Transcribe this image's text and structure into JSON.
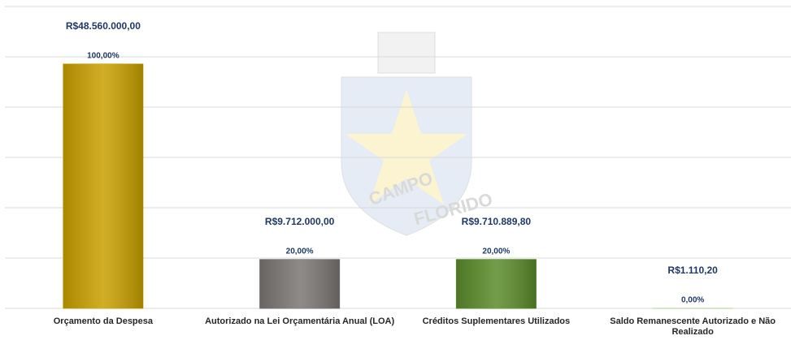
{
  "chart_data": {
    "type": "bar",
    "categories": [
      "Orçamento da Despesa",
      "Autorizado na Lei Orçamentária Anual (LOA)",
      "Créditos Suplementares Utilizados",
      "Saldo Remanescente Autorizado e Não Realizado"
    ],
    "values": [
      48560000,
      9712000,
      9710889.8,
      1110.2
    ],
    "value_labels": [
      "R$48.560.000,00",
      "R$9.712.000,00",
      "R$9.710.889,80",
      "R$1.110,20"
    ],
    "percentages": [
      100,
      20,
      20,
      0
    ],
    "percentage_labels": [
      "100,00%",
      "20,00%",
      "20,00%",
      "0,00%"
    ],
    "colors": [
      "#c9a000",
      "#7a7674",
      "#5b8c2a",
      "#a9d18e"
    ],
    "ylim": [
      0,
      60000000
    ],
    "yticks": [
      0,
      10000000,
      20000000,
      30000000,
      40000000,
      50000000,
      60000000
    ],
    "grid": true,
    "watermark_text": [
      "CAMPO",
      "FLORIDO"
    ]
  }
}
